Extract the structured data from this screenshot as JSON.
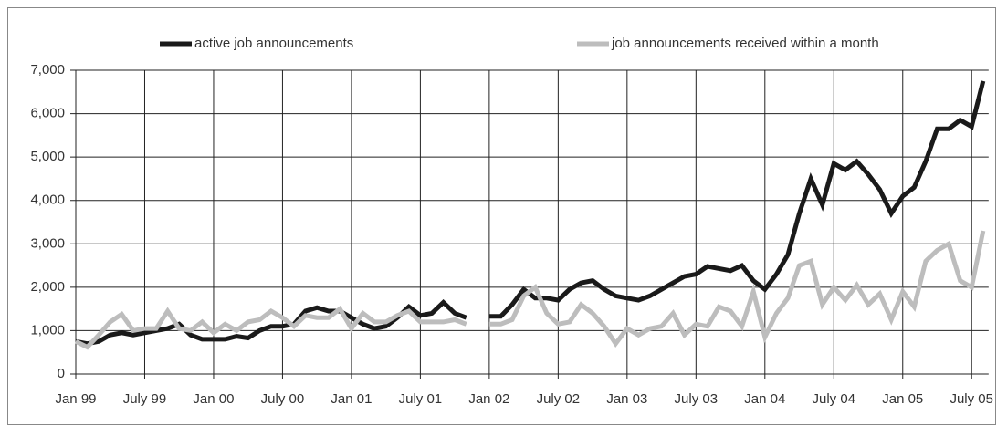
{
  "chart_data": {
    "type": "line",
    "categories": [
      "Jan 99",
      null,
      null,
      null,
      null,
      null,
      "July 99",
      null,
      null,
      null,
      null,
      null,
      "Jan 00",
      null,
      null,
      null,
      null,
      null,
      "July 00",
      null,
      null,
      null,
      null,
      null,
      "Jan 01",
      null,
      null,
      null,
      null,
      null,
      "July 01",
      null,
      null,
      null,
      null,
      null,
      "Jan 02",
      null,
      null,
      null,
      null,
      null,
      "July 02",
      null,
      null,
      null,
      null,
      null,
      "Jan 03",
      null,
      null,
      null,
      null,
      null,
      "July 03",
      null,
      null,
      null,
      null,
      null,
      "Jan 04",
      null,
      null,
      null,
      null,
      null,
      "July 04",
      null,
      null,
      null,
      null,
      null,
      "Jan 05",
      null,
      null,
      null,
      null,
      null,
      "July 05",
      null
    ],
    "series": [
      {
        "name": "active job announcements",
        "color": "#1a1a1a",
        "values": [
          750,
          700,
          750,
          900,
          950,
          900,
          950,
          1000,
          1050,
          1150,
          900,
          800,
          800,
          800,
          870,
          830,
          1000,
          1100,
          1100,
          1150,
          1450,
          1530,
          1450,
          1450,
          1300,
          1150,
          1050,
          1100,
          1300,
          1550,
          1350,
          1400,
          1650,
          1400,
          1300,
          null,
          1330,
          1330,
          1600,
          1950,
          1750,
          1750,
          1700,
          1950,
          2100,
          2150,
          1950,
          1800,
          1750,
          1700,
          1800,
          1950,
          2100,
          2250,
          2300,
          2480,
          2430,
          2380,
          2500,
          2150,
          1950,
          2300,
          2750,
          3700,
          4500,
          3900,
          4850,
          4700,
          4900,
          4600,
          4250,
          3700,
          4100,
          4300,
          4900,
          5650,
          5650,
          5850,
          5700,
          6750
        ]
      },
      {
        "name": "job announcements received within a month",
        "color": "#bdbdbd",
        "values": [
          750,
          620,
          900,
          1200,
          1380,
          1000,
          1050,
          1050,
          1450,
          1050,
          1000,
          1200,
          950,
          1150,
          1000,
          1200,
          1250,
          1450,
          1300,
          1100,
          1350,
          1300,
          1300,
          1500,
          1050,
          1400,
          1200,
          1200,
          1350,
          1450,
          1200,
          1200,
          1200,
          1250,
          1150,
          null,
          1150,
          1150,
          1250,
          1800,
          2000,
          1400,
          1150,
          1200,
          1600,
          1400,
          1100,
          700,
          1050,
          900,
          1050,
          1100,
          1400,
          900,
          1150,
          1100,
          1550,
          1450,
          1100,
          1900,
          850,
          1400,
          1750,
          2500,
          2600,
          1600,
          2000,
          1700,
          2050,
          1600,
          1850,
          1250,
          1900,
          1550,
          2600,
          2850,
          3000,
          2150,
          2000,
          3300
        ]
      }
    ],
    "ylim": [
      0,
      7000
    ],
    "yticks": [
      0,
      {
        "value": 1000,
        "label": "1,000"
      },
      {
        "value": 2000,
        "label": "2,000"
      },
      {
        "value": 3000,
        "label": "3,000"
      },
      {
        "value": 4000,
        "label": "4,000"
      },
      {
        "value": 5000,
        "label": "5,000"
      },
      {
        "value": 6000,
        "label": "6,000"
      },
      {
        "value": 7000,
        "label": "7,000"
      }
    ],
    "grid": true,
    "legend": "top"
  }
}
